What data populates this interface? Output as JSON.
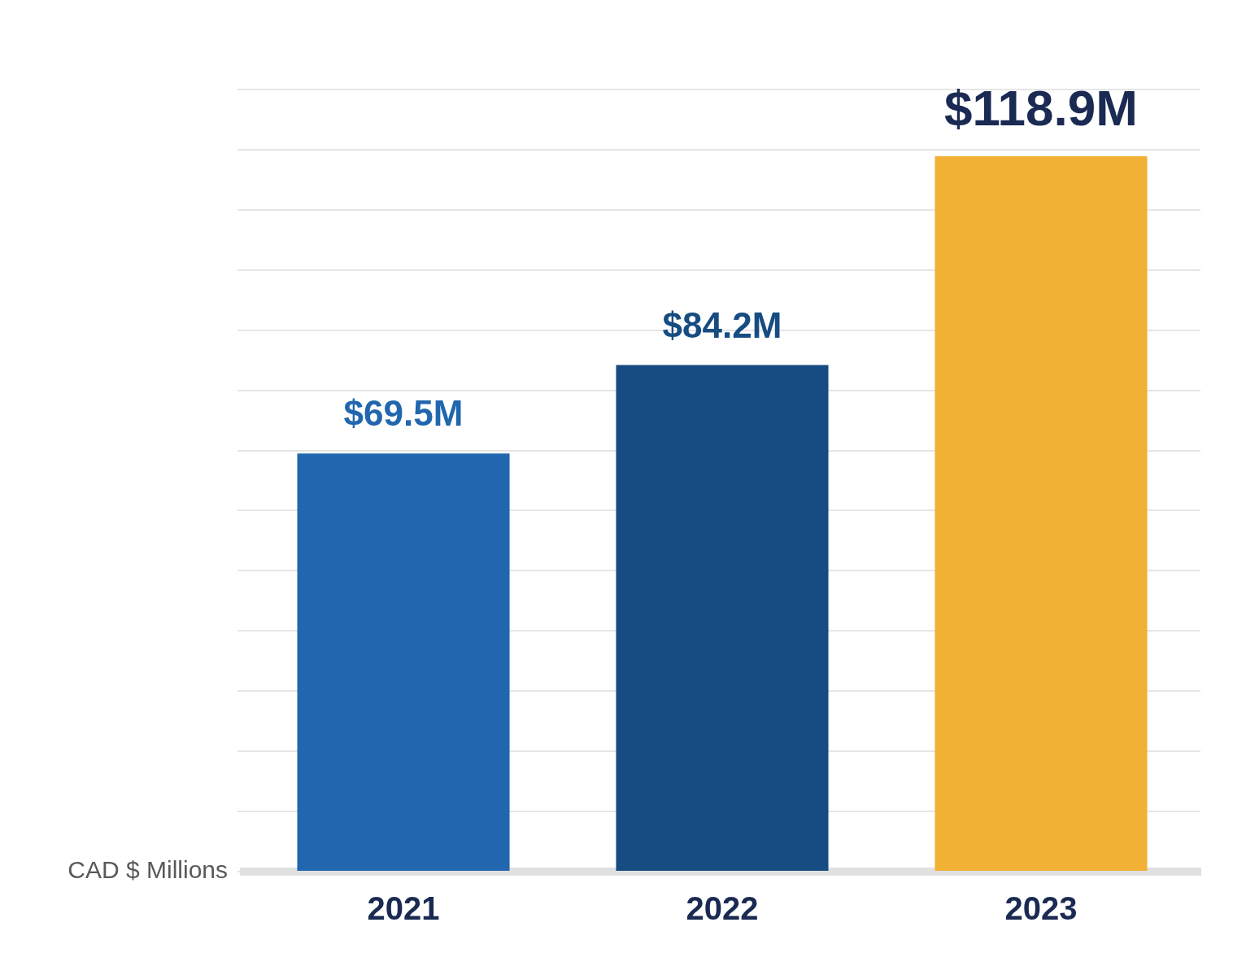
{
  "chart_data": {
    "type": "bar",
    "ylabel": "CAD $ Millions",
    "categories": [
      "2021",
      "2022",
      "2023"
    ],
    "values": [
      69.5,
      84.2,
      118.9
    ],
    "value_labels": [
      "$69.5M",
      "$84.2M",
      "$118.9M"
    ],
    "colors": [
      "#2166ae",
      "#174c82",
      "#f0b135"
    ],
    "ylim": [
      0,
      130
    ],
    "yticks": [
      0,
      10,
      20,
      30,
      40,
      50,
      60,
      70,
      80,
      90,
      100,
      110,
      120,
      130
    ],
    "grid": true,
    "data_labels": true,
    "tick_labels": "x"
  }
}
